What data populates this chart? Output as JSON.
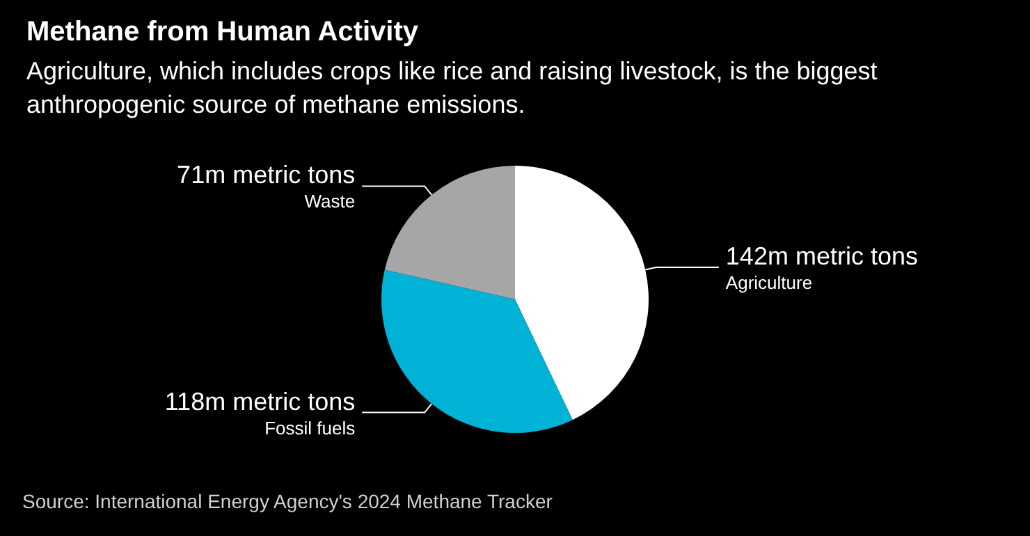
{
  "chart_data": {
    "type": "pie",
    "title": "Methane from Human Activity",
    "subtitle": "Agriculture, which includes crops like rice and raising livestock, is the biggest\nanthropogenic source of methane emissions.",
    "categories": [
      "Agriculture",
      "Fossil fuels",
      "Waste"
    ],
    "values": [
      142,
      118,
      71
    ],
    "value_labels": [
      "142m metric tons",
      "118m metric tons",
      "71m metric tons"
    ],
    "colors": [
      "#ffffff",
      "#00b2d6",
      "#a6a6a6"
    ],
    "annotations": [
      "Source: International Energy Agency's 2024 Methane Tracker"
    ],
    "legend": false
  }
}
